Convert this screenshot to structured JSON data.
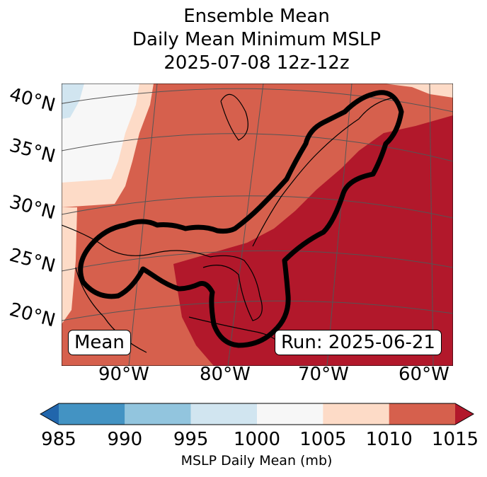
{
  "title": {
    "line1": "Ensemble Mean",
    "line2": "Daily Mean Minimum MSLP",
    "line3": "2025-07-08 12z-12z"
  },
  "lat_labels": [
    "40°N",
    "35°N",
    "30°N",
    "25°N",
    "20°N"
  ],
  "lon_labels": [
    "90°W",
    "80°W",
    "70°W",
    "60°W"
  ],
  "annotations": {
    "left": "Mean",
    "right": "Run: 2025-06-21"
  },
  "colorbar": {
    "label": "MSLP Daily Mean (mb)",
    "ticks": [
      "985",
      "990",
      "995",
      "1000",
      "1005",
      "1010",
      "1015"
    ],
    "colors": [
      "#4393c3",
      "#92c5de",
      "#d1e5f0",
      "#f7f7f7",
      "#fddbc7",
      "#d6604d"
    ],
    "under_color": "#2166ac",
    "over_color": "#b2182b"
  }
}
